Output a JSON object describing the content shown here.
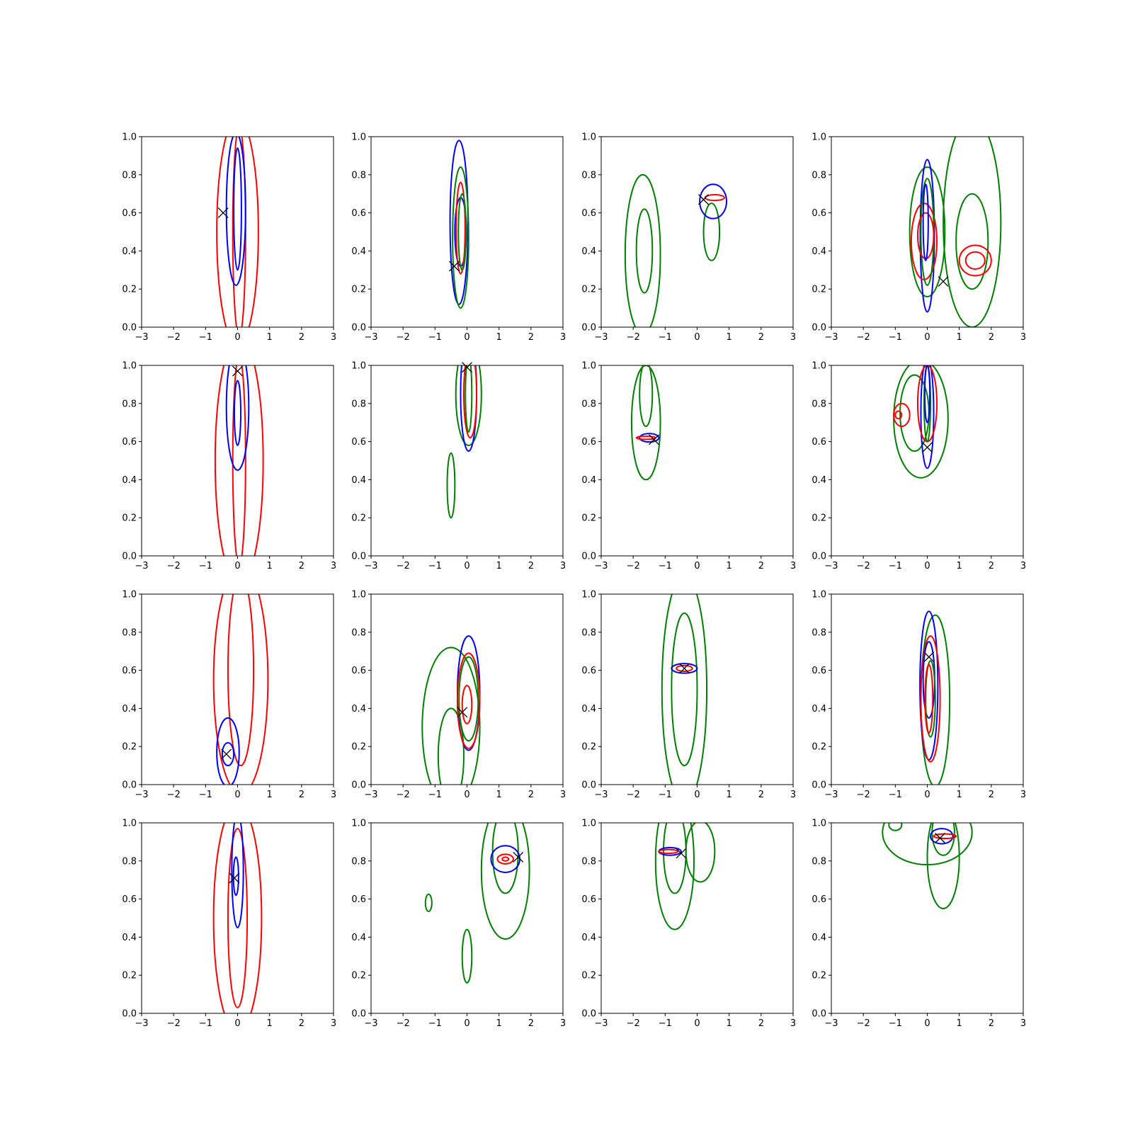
{
  "colors": {
    "blue": "#0000ff",
    "red": "#ff0000",
    "green": "#008000",
    "marker": "#000000"
  },
  "chart_data": {
    "type": "contour-grid",
    "layout": "4x4 small multiples",
    "xlim": [
      -3,
      3
    ],
    "ylim": [
      0,
      1
    ],
    "xticks": [
      "−3",
      "−2",
      "−1",
      "0",
      "1",
      "2",
      "3"
    ],
    "yticks": [
      "0.0",
      "0.2",
      "0.4",
      "0.6",
      "0.8",
      "1.0"
    ],
    "marker_symbol": "x",
    "panels": [
      {
        "marker": [
          -0.45,
          0.6
        ],
        "contours": [
          {
            "color": "red",
            "cx": 0.0,
            "cy": 0.5,
            "rx": 0.65,
            "ry": 0.6
          },
          {
            "color": "red",
            "cx": 0.05,
            "cy": 0.5,
            "rx": 0.2,
            "ry": 0.55
          },
          {
            "color": "blue",
            "cx": -0.05,
            "cy": 0.62,
            "rx": 0.3,
            "ry": 0.4
          },
          {
            "color": "blue",
            "cx": 0.0,
            "cy": 0.62,
            "rx": 0.12,
            "ry": 0.32
          }
        ]
      },
      {
        "marker": [
          -0.4,
          0.32
        ],
        "contours": [
          {
            "color": "blue",
            "cx": -0.25,
            "cy": 0.55,
            "rx": 0.28,
            "ry": 0.43
          },
          {
            "color": "green",
            "cx": -0.2,
            "cy": 0.47,
            "rx": 0.25,
            "ry": 0.37
          },
          {
            "color": "blue",
            "cx": -0.2,
            "cy": 0.5,
            "rx": 0.18,
            "ry": 0.18
          },
          {
            "color": "red",
            "cx": -0.2,
            "cy": 0.52,
            "rx": 0.14,
            "ry": 0.24
          },
          {
            "color": "green",
            "cx": -0.15,
            "cy": 0.5,
            "rx": 0.12,
            "ry": 0.2
          }
        ]
      },
      {
        "marker": [
          0.2,
          0.67
        ],
        "contours": [
          {
            "color": "green",
            "cx": -1.7,
            "cy": 0.38,
            "rx": 0.55,
            "ry": 0.42
          },
          {
            "color": "green",
            "cx": -1.65,
            "cy": 0.4,
            "rx": 0.25,
            "ry": 0.22
          },
          {
            "color": "green",
            "cx": 0.45,
            "cy": 0.5,
            "rx": 0.25,
            "ry": 0.15
          },
          {
            "color": "blue",
            "cx": 0.5,
            "cy": 0.66,
            "rx": 0.42,
            "ry": 0.09
          },
          {
            "color": "red",
            "cx": 0.55,
            "cy": 0.68,
            "rx": 0.3,
            "ry": 0.015
          }
        ]
      },
      {
        "marker": [
          0.5,
          0.24
        ],
        "contours": [
          {
            "color": "green",
            "cx": 1.4,
            "cy": 0.55,
            "rx": 0.9,
            "ry": 0.55
          },
          {
            "color": "green",
            "cx": 1.4,
            "cy": 0.45,
            "rx": 0.5,
            "ry": 0.25
          },
          {
            "color": "green",
            "cx": 0.0,
            "cy": 0.5,
            "rx": 0.55,
            "ry": 0.34
          },
          {
            "color": "blue",
            "cx": 0.0,
            "cy": 0.48,
            "rx": 0.22,
            "ry": 0.4
          },
          {
            "color": "red",
            "cx": -0.1,
            "cy": 0.45,
            "rx": 0.4,
            "ry": 0.2
          },
          {
            "color": "green",
            "cx": 0.0,
            "cy": 0.5,
            "rx": 0.2,
            "ry": 0.28
          },
          {
            "color": "red",
            "cx": -0.05,
            "cy": 0.48,
            "rx": 0.25,
            "ry": 0.12
          },
          {
            "color": "blue",
            "cx": -0.05,
            "cy": 0.55,
            "rx": 0.08,
            "ry": 0.2
          },
          {
            "color": "red",
            "cx": 1.5,
            "cy": 0.35,
            "rx": 0.5,
            "ry": 0.08
          },
          {
            "color": "red",
            "cx": 1.5,
            "cy": 0.35,
            "rx": 0.3,
            "ry": 0.045
          }
        ]
      },
      {
        "marker": [
          0.0,
          0.97
        ],
        "contours": [
          {
            "color": "red",
            "cx": 0.05,
            "cy": 0.5,
            "rx": 0.75,
            "ry": 0.65
          },
          {
            "color": "red",
            "cx": 0.05,
            "cy": 0.5,
            "rx": 0.2,
            "ry": 0.55
          },
          {
            "color": "blue",
            "cx": 0.0,
            "cy": 0.78,
            "rx": 0.35,
            "ry": 0.33
          },
          {
            "color": "blue",
            "cx": 0.0,
            "cy": 0.75,
            "rx": 0.1,
            "ry": 0.17
          }
        ]
      },
      {
        "marker": [
          0.0,
          0.99
        ],
        "contours": [
          {
            "color": "green",
            "cx": 0.05,
            "cy": 0.85,
            "rx": 0.4,
            "ry": 0.27
          },
          {
            "color": "blue",
            "cx": 0.05,
            "cy": 0.85,
            "rx": 0.25,
            "ry": 0.3
          },
          {
            "color": "red",
            "cx": 0.1,
            "cy": 0.85,
            "rx": 0.2,
            "ry": 0.23
          },
          {
            "color": "green",
            "cx": 0.05,
            "cy": 0.85,
            "rx": 0.1,
            "ry": 0.2
          },
          {
            "color": "green",
            "cx": -0.5,
            "cy": 0.37,
            "rx": 0.12,
            "ry": 0.17
          }
        ]
      },
      {
        "marker": [
          -1.35,
          0.61
        ],
        "contours": [
          {
            "color": "green",
            "cx": -1.6,
            "cy": 0.7,
            "rx": 0.45,
            "ry": 0.3
          },
          {
            "color": "green",
            "cx": -1.6,
            "cy": 0.85,
            "rx": 0.2,
            "ry": 0.17
          },
          {
            "color": "blue",
            "cx": -1.5,
            "cy": 0.62,
            "rx": 0.3,
            "ry": 0.022
          },
          {
            "color": "red",
            "cx": -1.6,
            "cy": 0.62,
            "rx": 0.3,
            "ry": 0.008
          }
        ]
      },
      {
        "marker": [
          0.0,
          0.57
        ],
        "contours": [
          {
            "color": "green",
            "cx": -0.2,
            "cy": 0.72,
            "rx": 0.85,
            "ry": 0.31
          },
          {
            "color": "green",
            "cx": -0.4,
            "cy": 0.75,
            "rx": 0.45,
            "ry": 0.2
          },
          {
            "color": "blue",
            "cx": 0.0,
            "cy": 0.75,
            "rx": 0.2,
            "ry": 0.29
          },
          {
            "color": "red",
            "cx": 0.0,
            "cy": 0.8,
            "rx": 0.3,
            "ry": 0.2
          },
          {
            "color": "red",
            "cx": -0.8,
            "cy": 0.74,
            "rx": 0.25,
            "ry": 0.06
          },
          {
            "color": "red",
            "cx": -0.9,
            "cy": 0.74,
            "rx": 0.1,
            "ry": 0.02
          },
          {
            "color": "green",
            "cx": 0.0,
            "cy": 0.8,
            "rx": 0.1,
            "ry": 0.2
          },
          {
            "color": "blue",
            "cx": 0.0,
            "cy": 0.85,
            "rx": 0.08,
            "ry": 0.15
          }
        ]
      },
      {
        "marker": [
          -0.35,
          0.16
        ],
        "contours": [
          {
            "color": "red",
            "cx": 0.1,
            "cy": 0.55,
            "rx": 0.85,
            "ry": 0.6
          },
          {
            "color": "red",
            "cx": 0.1,
            "cy": 0.6,
            "rx": 0.4,
            "ry": 0.5
          },
          {
            "color": "blue",
            "cx": -0.3,
            "cy": 0.17,
            "rx": 0.35,
            "ry": 0.18
          },
          {
            "color": "blue",
            "cx": -0.3,
            "cy": 0.16,
            "rx": 0.18,
            "ry": 0.06
          }
        ]
      },
      {
        "marker": [
          -0.15,
          0.38
        ],
        "contours": [
          {
            "color": "green",
            "cx": -0.5,
            "cy": 0.3,
            "rx": 0.9,
            "ry": 0.42
          },
          {
            "color": "green",
            "cx": -0.5,
            "cy": 0.15,
            "rx": 0.4,
            "ry": 0.25
          },
          {
            "color": "blue",
            "cx": 0.05,
            "cy": 0.48,
            "rx": 0.35,
            "ry": 0.3
          },
          {
            "color": "red",
            "cx": 0.05,
            "cy": 0.44,
            "rx": 0.35,
            "ry": 0.25
          },
          {
            "color": "green",
            "cx": 0.05,
            "cy": 0.45,
            "rx": 0.3,
            "ry": 0.22
          },
          {
            "color": "red",
            "cx": 0.0,
            "cy": 0.42,
            "rx": 0.15,
            "ry": 0.1
          }
        ]
      },
      {
        "marker": [
          -0.4,
          0.61
        ],
        "contours": [
          {
            "color": "green",
            "cx": -0.4,
            "cy": 0.5,
            "rx": 0.7,
            "ry": 0.6
          },
          {
            "color": "green",
            "cx": -0.4,
            "cy": 0.5,
            "rx": 0.4,
            "ry": 0.4
          },
          {
            "color": "blue",
            "cx": -0.4,
            "cy": 0.61,
            "rx": 0.4,
            "ry": 0.025
          },
          {
            "color": "red",
            "cx": -0.4,
            "cy": 0.61,
            "rx": 0.25,
            "ry": 0.015
          }
        ]
      },
      {
        "marker": [
          0.05,
          0.67
        ],
        "contours": [
          {
            "color": "green",
            "cx": 0.25,
            "cy": 0.44,
            "rx": 0.45,
            "ry": 0.45
          },
          {
            "color": "blue",
            "cx": 0.05,
            "cy": 0.52,
            "rx": 0.28,
            "ry": 0.39
          },
          {
            "color": "red",
            "cx": 0.1,
            "cy": 0.45,
            "rx": 0.3,
            "ry": 0.33
          },
          {
            "color": "blue",
            "cx": 0.05,
            "cy": 0.55,
            "rx": 0.18,
            "ry": 0.2
          },
          {
            "color": "green",
            "cx": 0.1,
            "cy": 0.45,
            "rx": 0.15,
            "ry": 0.2
          },
          {
            "color": "red",
            "cx": 0.05,
            "cy": 0.45,
            "rx": 0.12,
            "ry": 0.18
          }
        ]
      },
      {
        "marker": [
          -0.1,
          0.71
        ],
        "contours": [
          {
            "color": "red",
            "cx": 0.0,
            "cy": 0.5,
            "rx": 0.75,
            "ry": 0.6
          },
          {
            "color": "red",
            "cx": 0.0,
            "cy": 0.5,
            "rx": 0.3,
            "ry": 0.47
          },
          {
            "color": "blue",
            "cx": 0.0,
            "cy": 0.75,
            "rx": 0.18,
            "ry": 0.3
          },
          {
            "color": "blue",
            "cx": -0.05,
            "cy": 0.72,
            "rx": 0.08,
            "ry": 0.1
          }
        ]
      },
      {
        "marker": [
          1.6,
          0.82
        ],
        "contours": [
          {
            "color": "green",
            "cx": 1.2,
            "cy": 0.75,
            "rx": 0.75,
            "ry": 0.36
          },
          {
            "color": "green",
            "cx": 1.2,
            "cy": 0.85,
            "rx": 0.4,
            "ry": 0.22
          },
          {
            "color": "blue",
            "cx": 1.2,
            "cy": 0.81,
            "rx": 0.45,
            "ry": 0.07
          },
          {
            "color": "red",
            "cx": 1.2,
            "cy": 0.81,
            "rx": 0.25,
            "ry": 0.025
          },
          {
            "color": "red",
            "cx": 1.2,
            "cy": 0.81,
            "rx": 0.1,
            "ry": 0.01
          },
          {
            "color": "green",
            "cx": -1.2,
            "cy": 0.58,
            "rx": 0.1,
            "ry": 0.045
          },
          {
            "color": "green",
            "cx": 0.0,
            "cy": 0.3,
            "rx": 0.15,
            "ry": 0.14
          }
        ]
      },
      {
        "marker": [
          -0.5,
          0.84
        ],
        "contours": [
          {
            "color": "green",
            "cx": -0.7,
            "cy": 0.8,
            "rx": 0.6,
            "ry": 0.36
          },
          {
            "color": "green",
            "cx": -0.7,
            "cy": 0.85,
            "rx": 0.35,
            "ry": 0.22
          },
          {
            "color": "green",
            "cx": 0.1,
            "cy": 0.85,
            "rx": 0.45,
            "ry": 0.16
          },
          {
            "color": "blue",
            "cx": -0.85,
            "cy": 0.85,
            "rx": 0.35,
            "ry": 0.02
          },
          {
            "color": "red",
            "cx": -0.9,
            "cy": 0.85,
            "rx": 0.3,
            "ry": 0.01
          }
        ]
      },
      {
        "marker": [
          0.4,
          0.92
        ],
        "contours": [
          {
            "color": "green",
            "cx": 0.0,
            "cy": 0.95,
            "rx": 1.4,
            "ry": 0.17
          },
          {
            "color": "green",
            "cx": 0.5,
            "cy": 0.82,
            "rx": 0.5,
            "ry": 0.27
          },
          {
            "color": "green",
            "cx": 0.5,
            "cy": 0.95,
            "rx": 0.35,
            "ry": 0.12
          },
          {
            "color": "green",
            "cx": -1.0,
            "cy": 0.99,
            "rx": 0.2,
            "ry": 0.03
          },
          {
            "color": "blue",
            "cx": 0.45,
            "cy": 0.93,
            "rx": 0.35,
            "ry": 0.04
          },
          {
            "color": "red",
            "cx": 0.55,
            "cy": 0.93,
            "rx": 0.35,
            "ry": 0.012
          }
        ]
      }
    ]
  }
}
